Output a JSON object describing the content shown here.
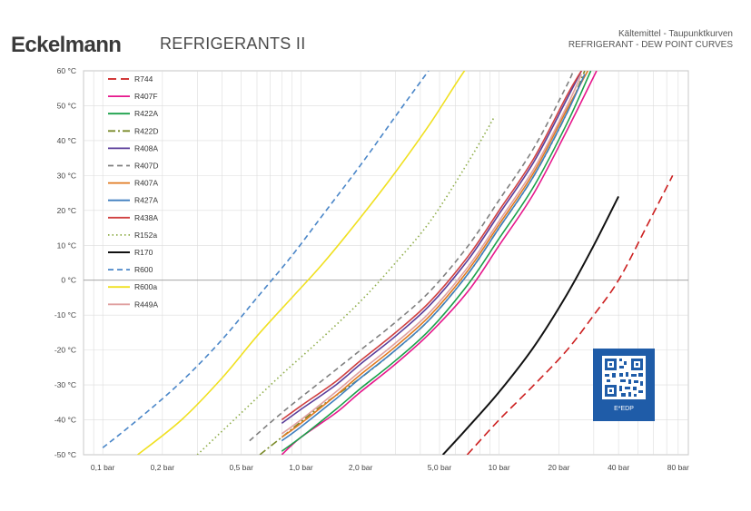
{
  "header": {
    "brand": "Eckelmann",
    "subtitle": "REFRIGERANTS II",
    "title_de": "Kältemittel - Taupunktkurven",
    "title_en": "REFRIGERANT - DEW POINT CURVES"
  },
  "qr": {
    "label": "E*EDP",
    "color": "#1f5ca8"
  },
  "chart_data": {
    "type": "line",
    "x_scale": "log",
    "xlim": [
      0.08,
      90
    ],
    "ylim": [
      -50,
      60
    ],
    "x_ticks": [
      {
        "value": 0.1,
        "label": "0,1 bar"
      },
      {
        "value": 0.2,
        "label": "0,2 bar"
      },
      {
        "value": 0.5,
        "label": "0,5 bar"
      },
      {
        "value": 1,
        "label": "1,0 bar"
      },
      {
        "value": 2,
        "label": "2,0 bar"
      },
      {
        "value": 5,
        "label": "5,0 bar"
      },
      {
        "value": 10,
        "label": "10 bar"
      },
      {
        "value": 20,
        "label": "20 bar"
      },
      {
        "value": 40,
        "label": "40 bar"
      },
      {
        "value": 80,
        "label": "80 bar"
      }
    ],
    "y_ticks": [
      {
        "value": 60,
        "label": "60 °C"
      },
      {
        "value": 50,
        "label": "50 °C"
      },
      {
        "value": 40,
        "label": "40 °C"
      },
      {
        "value": 30,
        "label": "30 °C"
      },
      {
        "value": 20,
        "label": "20 °C"
      },
      {
        "value": 10,
        "label": "10 °C"
      },
      {
        "value": 0,
        "label": "0 °C"
      },
      {
        "value": -10,
        "label": "-10 °C"
      },
      {
        "value": -20,
        "label": "-20 °C"
      },
      {
        "value": -30,
        "label": "-30 °C"
      },
      {
        "value": -40,
        "label": "-40 °C"
      },
      {
        "value": -50,
        "label": "-50 °C"
      }
    ],
    "grid": true,
    "legend_position": "top-left",
    "series": [
      {
        "name": "R744",
        "color": "#cc1f1f",
        "dash": "long-dash",
        "x": [
          6.9,
          10,
          15,
          22,
          30,
          40,
          55,
          75
        ],
        "y": [
          -50,
          -40,
          -30,
          -20,
          -10,
          0,
          15,
          30
        ]
      },
      {
        "name": "R407F",
        "color": "#e6178c",
        "dash": "solid",
        "x": [
          0.8,
          1,
          1.5,
          2,
          3,
          4.5,
          7,
          10,
          15,
          22,
          31
        ],
        "y": [
          -50,
          -45,
          -38,
          -32,
          -24,
          -15,
          -3,
          10,
          25,
          43,
          60
        ]
      },
      {
        "name": "R422A",
        "color": "#1aa04a",
        "dash": "solid",
        "x": [
          0.8,
          1,
          1.5,
          2,
          3,
          4.5,
          7,
          10,
          15,
          22,
          29
        ],
        "y": [
          -49,
          -45,
          -37,
          -31,
          -23,
          -14,
          -1,
          12,
          27,
          45,
          60
        ]
      },
      {
        "name": "R422D",
        "color": "#7a8a2a",
        "dash": "dash-dot",
        "x": [
          0.62,
          0.8,
          1.2,
          2,
          3,
          4.5,
          7,
          10,
          15,
          22,
          27
        ],
        "y": [
          -50,
          -45,
          -37,
          -28,
          -20,
          -11,
          2,
          15,
          30,
          48,
          60
        ]
      },
      {
        "name": "R408A",
        "color": "#5a3d9a",
        "dash": "solid",
        "x": [
          0.8,
          1,
          1.5,
          2,
          3,
          4.5,
          7,
          10,
          15,
          22,
          26
        ],
        "y": [
          -41,
          -37,
          -30,
          -24,
          -16,
          -7,
          6,
          19,
          34,
          52,
          60
        ]
      },
      {
        "name": "R407D",
        "color": "#808080",
        "dash": "dash",
        "x": [
          0.55,
          0.8,
          1.2,
          2,
          3,
          4.5,
          7,
          10,
          15,
          22,
          24
        ],
        "y": [
          -46,
          -38,
          -30,
          -20,
          -12,
          -3,
          10,
          23,
          38,
          56,
          61
        ]
      },
      {
        "name": "R407A",
        "color": "#e07a20",
        "dash": "solid",
        "x": [
          0.8,
          1,
          1.5,
          2,
          3,
          4.5,
          7,
          10,
          15,
          22,
          28
        ],
        "y": [
          -45,
          -41,
          -33,
          -27,
          -19,
          -10,
          3,
          16,
          31,
          49,
          60
        ]
      },
      {
        "name": "R427A",
        "color": "#3f7fbf",
        "dash": "solid",
        "x": [
          0.8,
          1,
          1.5,
          2,
          3,
          4.5,
          7,
          10,
          15,
          22,
          27
        ],
        "y": [
          -46,
          -42,
          -34,
          -28,
          -20,
          -11,
          2,
          15,
          30,
          48,
          59
        ]
      },
      {
        "name": "R438A",
        "color": "#d04040",
        "dash": "solid",
        "x": [
          0.8,
          1,
          1.5,
          2,
          3,
          4.5,
          7,
          10,
          15,
          22,
          26
        ],
        "y": [
          -40,
          -36,
          -29,
          -23,
          -15,
          -6,
          7,
          20,
          35,
          53,
          60
        ]
      },
      {
        "name": "R152a",
        "color": "#8fae4a",
        "dash": "dot",
        "x": [
          0.3,
          0.5,
          0.8,
          1.2,
          2,
          3,
          4.5,
          7,
          9.5
        ],
        "y": [
          -50,
          -38,
          -27,
          -18,
          -6,
          5,
          17,
          34,
          47
        ]
      },
      {
        "name": "R170",
        "color": "#111111",
        "dash": "solid",
        "x": [
          5.2,
          7,
          10,
          15,
          22,
          30,
          40
        ],
        "y": [
          -50,
          -42,
          -32,
          -19,
          -4,
          10,
          24
        ]
      },
      {
        "name": "R600",
        "color": "#4a86c8",
        "dash": "dash",
        "x": [
          0.1,
          0.15,
          0.25,
          0.4,
          0.6,
          0.9,
          1.3,
          2,
          3,
          4.4
        ],
        "y": [
          -48,
          -40,
          -29,
          -17,
          -5,
          7,
          19,
          33,
          47,
          60
        ]
      },
      {
        "name": "R600a",
        "color": "#f0e020",
        "dash": "solid",
        "x": [
          0.15,
          0.25,
          0.4,
          0.6,
          0.9,
          1.3,
          2,
          3,
          4.5,
          6.5,
          8.5
        ],
        "y": [
          -50,
          -40,
          -28,
          -16,
          -5,
          5,
          18,
          31,
          45,
          59,
          68
        ]
      },
      {
        "name": "R449A",
        "color": "#e0a0a0",
        "dash": "solid",
        "x": [
          0.8,
          1,
          1.5,
          2,
          3,
          4.5,
          7,
          10,
          15,
          22,
          26
        ],
        "y": [
          -44,
          -40,
          -32,
          -26,
          -18,
          -9,
          4,
          17,
          32,
          50,
          59
        ]
      }
    ]
  }
}
